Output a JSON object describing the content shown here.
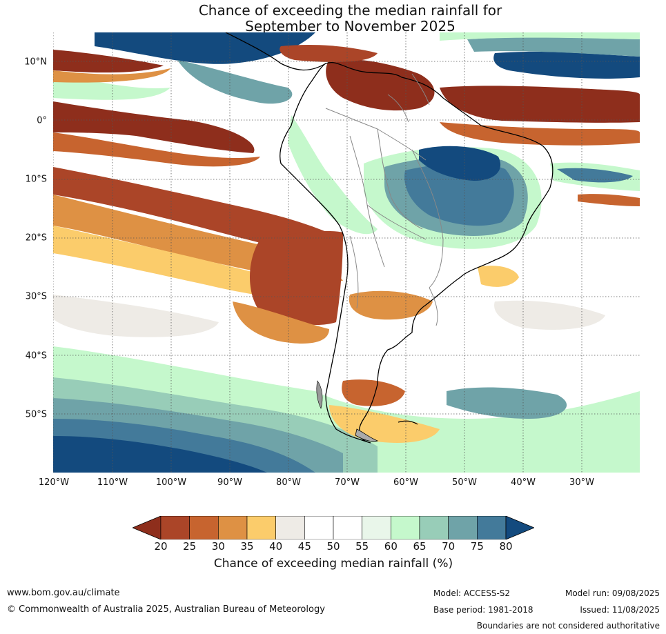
{
  "title": {
    "line1": "Chance of exceeding the median rainfall for",
    "line2": "September to November 2025"
  },
  "map": {
    "lat_labels": [
      "10°N",
      "0°",
      "10°S",
      "20°S",
      "30°S",
      "40°S",
      "50°S"
    ],
    "lon_labels": [
      "120°W",
      "110°W",
      "100°W",
      "90°W",
      "80°W",
      "70°W",
      "60°W",
      "50°W",
      "40°W",
      "30°W"
    ]
  },
  "colorbar": {
    "ticks": [
      "20",
      "25",
      "30",
      "35",
      "40",
      "45",
      "50",
      "55",
      "60",
      "65",
      "70",
      "75",
      "80"
    ],
    "colors": [
      "#8e2e1c",
      "#ab4528",
      "#c7642f",
      "#de9144",
      "#fbcc6b",
      "#eeebe6",
      "#ffffff",
      "#ffffff",
      "#e9f6ea",
      "#c5f8cc",
      "#98cdb8",
      "#6fa3a8",
      "#437a9a",
      "#134a7e"
    ],
    "label": "Chance of exceeding median rainfall (%)"
  },
  "footer": {
    "website": "www.bom.gov.au/climate",
    "copyright": "© Commonwealth of Australia 2025, Australian Bureau of Meteorology",
    "model": "Model: ACCESS-S2",
    "base_period": "Base period: 1981-2018",
    "model_run": "Model run: 09/08/2025",
    "issued": "Issued: 11/08/2025",
    "disclaimer": "Boundaries are not considered authoritative"
  }
}
